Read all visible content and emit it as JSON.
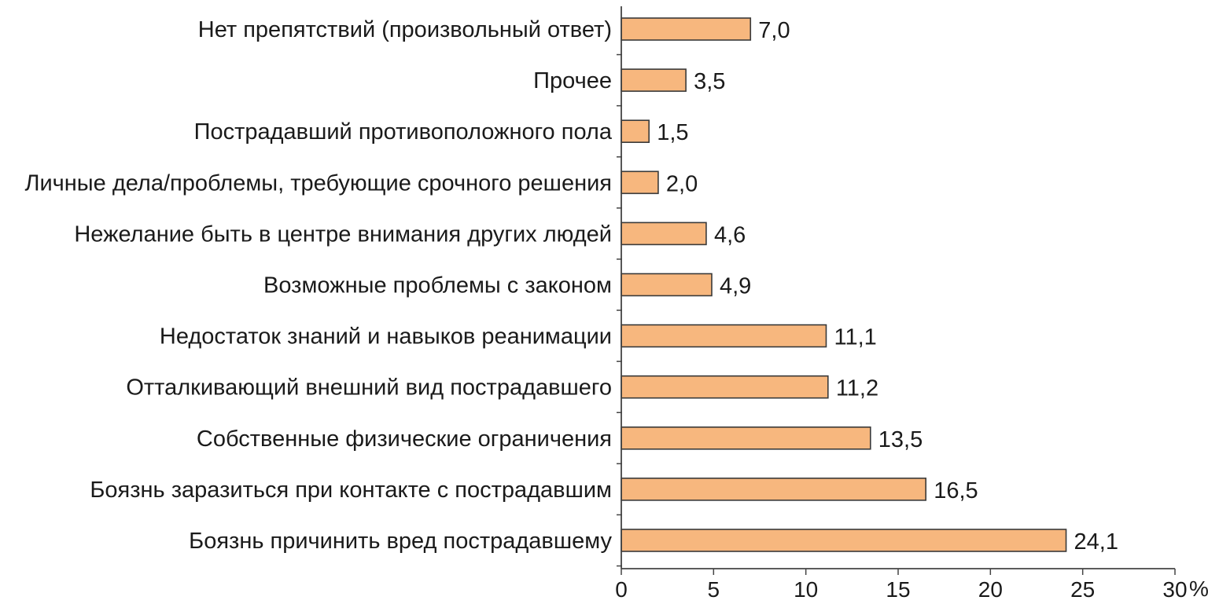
{
  "chart_data": {
    "type": "bar",
    "orientation": "horizontal",
    "categories": [
      "Нет препятствий (произвольный ответ)",
      "Прочее",
      "Пострадавший противоположного пола",
      "Личные дела/проблемы, требующие срочного решения",
      "Нежелание быть в центре внимания других людей",
      "Возможные проблемы с законом",
      "Недостаток знаний и навыков реанимации",
      "Отталкивающий внешний вид пострадавшего",
      "Собственные физические ограничения",
      "Боязнь заразиться при контакте с пострадавшим",
      "Боязнь причинить вред пострадавшему"
    ],
    "values": [
      7.0,
      3.5,
      1.5,
      2.0,
      4.6,
      4.9,
      11.1,
      11.2,
      13.5,
      16.5,
      24.1
    ],
    "value_labels": [
      "7,0",
      "3,5",
      "1,5",
      "2,0",
      "4,6",
      "4,9",
      "11,1",
      "11,2",
      "13,5",
      "16,5",
      "24,1"
    ],
    "xlim": [
      0,
      30
    ],
    "x_ticks": [
      0,
      5,
      10,
      15,
      20,
      25,
      30
    ],
    "x_tick_labels": [
      "0",
      "5",
      "10",
      "15",
      "20",
      "25",
      "30"
    ],
    "x_unit": "%",
    "title": "",
    "xlabel": "",
    "ylabel": "",
    "grid": false,
    "bar_color": "#f7b77e",
    "bar_edge_color": "#3a3a3a",
    "axis_color": "#444444"
  }
}
